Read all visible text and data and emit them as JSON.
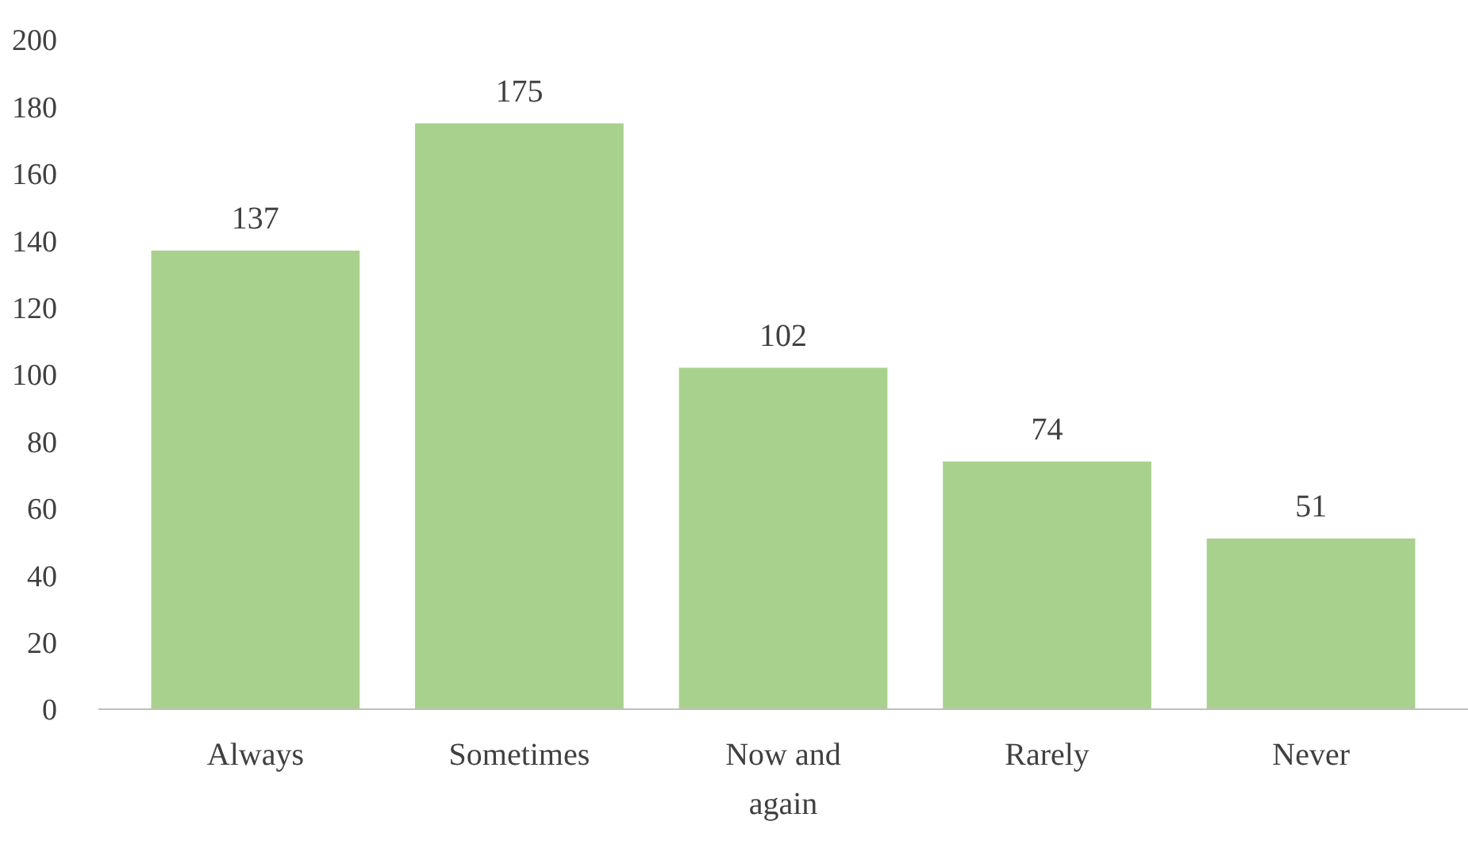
{
  "chart_data": {
    "type": "bar",
    "categories": [
      "Always",
      "Sometimes",
      "Now and again",
      "Rarely",
      "Never"
    ],
    "values": [
      137,
      175,
      102,
      74,
      51
    ],
    "color": "#a9d18e",
    "ylim": [
      0,
      200
    ],
    "yticks": [
      0,
      20,
      40,
      60,
      80,
      100,
      120,
      140,
      160,
      180,
      200
    ],
    "grid": false,
    "data_labels": true
  }
}
